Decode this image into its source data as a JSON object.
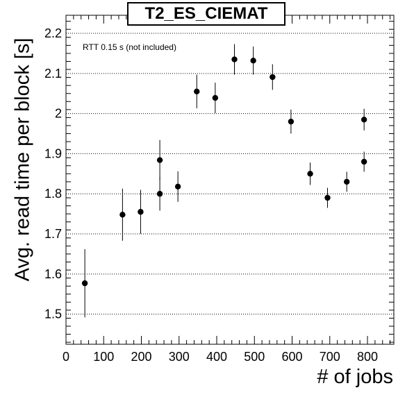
{
  "title": "T2_ES_CIEMAT",
  "chart_data": {
    "type": "scatter",
    "title": "T2_ES_CIEMAT",
    "xlabel": "# of jobs",
    "ylabel": "Avg. read time per block [s]",
    "annotation": "RTT 0.15 s (not included)",
    "xlim": [
      0,
      870
    ],
    "ylim": [
      1.425,
      2.245
    ],
    "xticks": [
      0,
      100,
      200,
      300,
      400,
      500,
      600,
      700,
      800
    ],
    "yticks": [
      1.5,
      1.6,
      1.7,
      1.8,
      1.9,
      2.0,
      2.1,
      2.2
    ],
    "ytick_labels": [
      "1.5",
      "1.6",
      "1.7",
      "1.8",
      "1.9",
      "2",
      "2.1",
      "2.2"
    ],
    "grid": "horizontal-dotted",
    "marker_color": "#000000",
    "series": [
      {
        "points": [
          {
            "x": 50,
            "y": 1.577,
            "err": 0.085
          },
          {
            "x": 150,
            "y": 1.748,
            "err": 0.065
          },
          {
            "x": 198,
            "y": 1.755,
            "err": 0.055
          },
          {
            "x": 249,
            "y": 1.884,
            "err": 0.05
          },
          {
            "x": 249,
            "y": 1.8,
            "err": 0.042
          },
          {
            "x": 297,
            "y": 1.818,
            "err": 0.038
          },
          {
            "x": 347,
            "y": 2.055,
            "err": 0.042
          },
          {
            "x": 396,
            "y": 2.039,
            "err": 0.038
          },
          {
            "x": 447,
            "y": 2.135,
            "err": 0.038
          },
          {
            "x": 497,
            "y": 2.132,
            "err": 0.035
          },
          {
            "x": 548,
            "y": 2.091,
            "err": 0.032
          },
          {
            "x": 597,
            "y": 1.98,
            "err": 0.03
          },
          {
            "x": 648,
            "y": 1.85,
            "err": 0.028
          },
          {
            "x": 694,
            "y": 1.79,
            "err": 0.025
          },
          {
            "x": 745,
            "y": 1.83,
            "err": 0.025
          },
          {
            "x": 791,
            "y": 1.88,
            "err": 0.025
          },
          {
            "x": 791,
            "y": 1.985,
            "err": 0.027
          }
        ]
      }
    ]
  }
}
